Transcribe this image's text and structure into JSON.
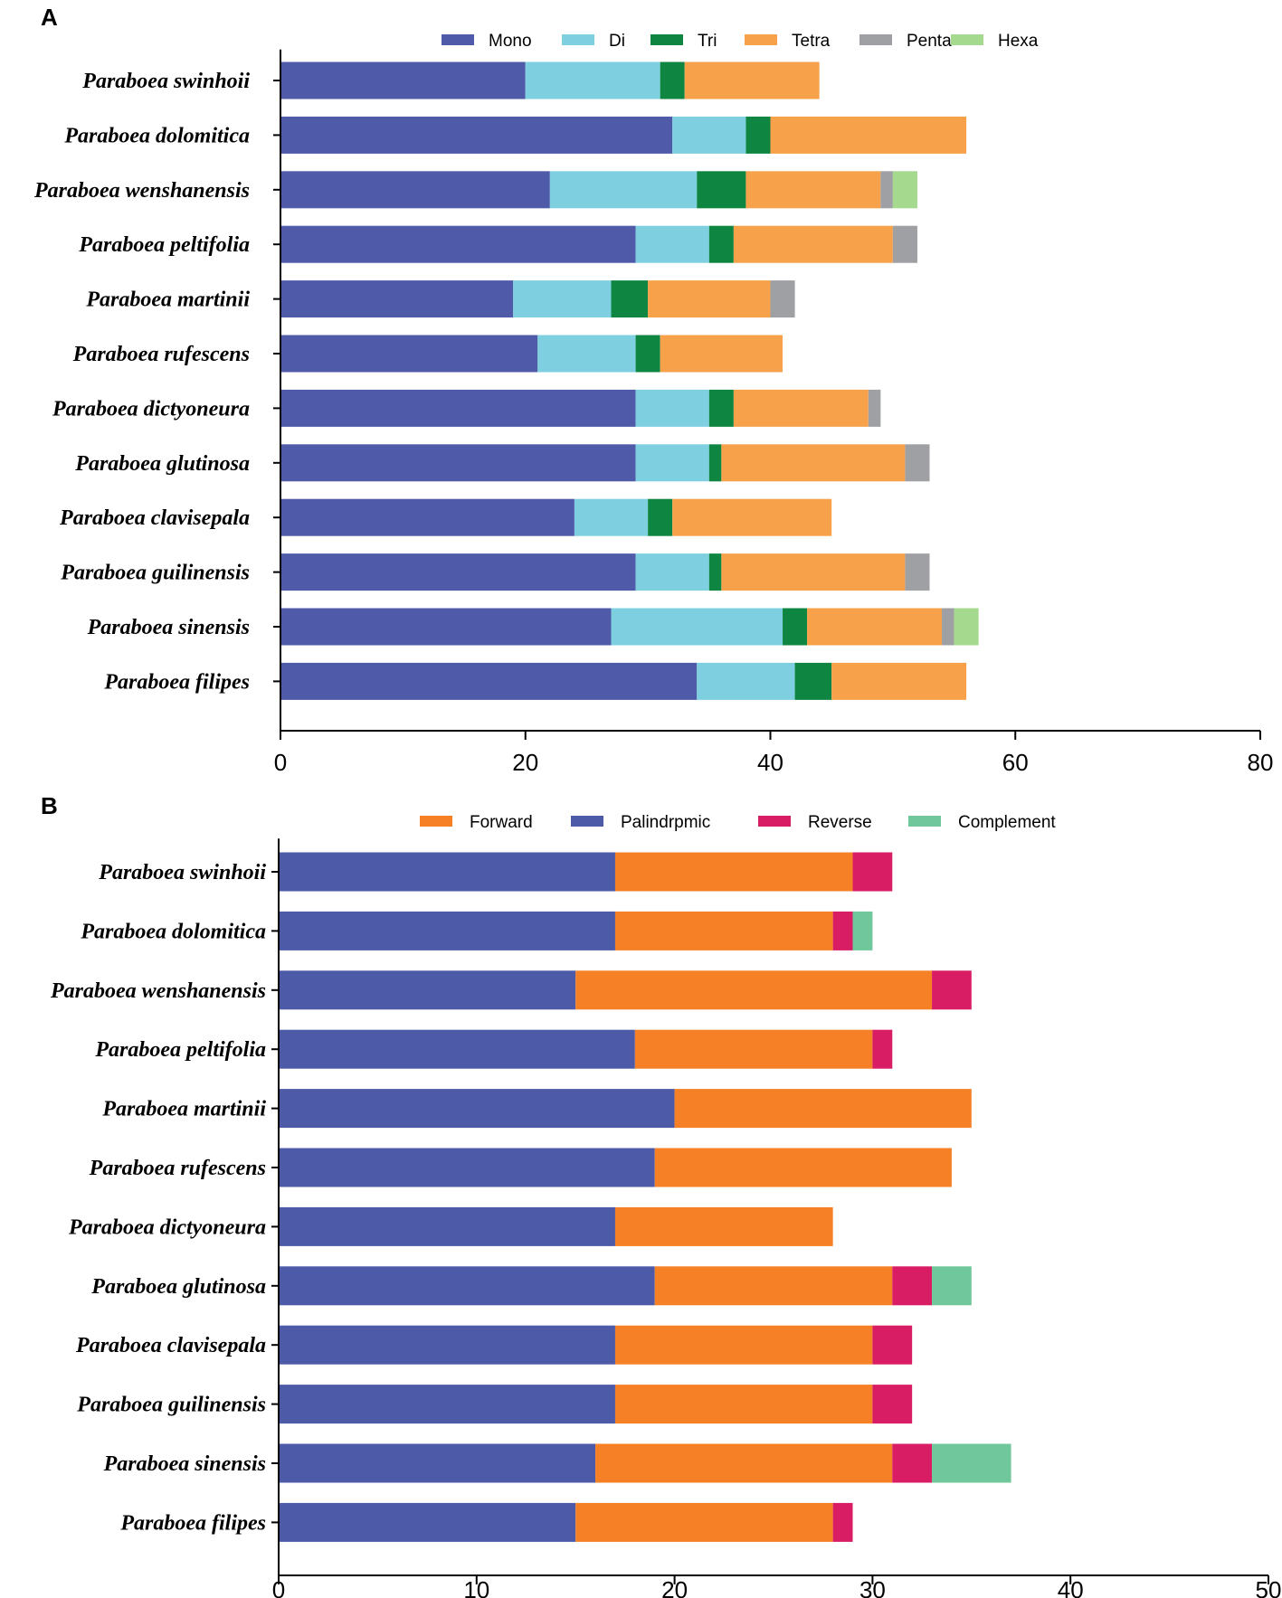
{
  "chart_data": [
    {
      "panel": "A",
      "type": "bar",
      "orientation": "horizontal",
      "stacked": true,
      "categories": [
        "Paraboea swinhoii",
        "Paraboea dolomitica",
        "Paraboea wenshanensis",
        "Paraboea peltifolia",
        "Paraboea martinii",
        "Paraboea rufescens",
        "Paraboea dictyoneura",
        "Paraboea glutinosa",
        "Paraboea clavisepala",
        "Paraboea guilinensis",
        "Paraboea sinensis",
        "Paraboea filipes"
      ],
      "series": [
        {
          "name": "Mono",
          "color": "#4f5aa8",
          "values": [
            20,
            32,
            22,
            29,
            19,
            21,
            29,
            29,
            24,
            29,
            27,
            34
          ]
        },
        {
          "name": "Di",
          "color": "#7ed0e0",
          "values": [
            11,
            6,
            12,
            6,
            8,
            8,
            6,
            6,
            6,
            6,
            14,
            8
          ]
        },
        {
          "name": "Tri",
          "color": "#0f8542",
          "values": [
            2,
            2,
            4,
            2,
            3,
            2,
            2,
            1,
            2,
            1,
            2,
            3
          ]
        },
        {
          "name": "Tetra",
          "color": "#f7a24b",
          "values": [
            11,
            16,
            11,
            13,
            10,
            10,
            11,
            15,
            13,
            15,
            11,
            11
          ]
        },
        {
          "name": "Penta",
          "color": "#9fa0a3",
          "values": [
            0,
            0,
            1,
            2,
            2,
            0,
            1,
            2,
            0,
            2,
            1,
            0
          ]
        },
        {
          "name": "Hexa",
          "color": "#a5d98e",
          "values": [
            0,
            0,
            2,
            0,
            0,
            0,
            0,
            0,
            0,
            0,
            2,
            0
          ]
        }
      ],
      "xlim": [
        0,
        80
      ],
      "xticks": [
        "0",
        "20",
        "40",
        "60",
        "80"
      ],
      "legend": "top"
    },
    {
      "panel": "B",
      "type": "bar",
      "orientation": "horizontal",
      "stacked": true,
      "categories": [
        "Paraboea swinhoii",
        "Paraboea dolomitica",
        "Paraboea wenshanensis",
        "Paraboea peltifolia",
        "Paraboea martinii",
        "Paraboea rufescens",
        "Paraboea dictyoneura",
        "Paraboea glutinosa",
        "Paraboea clavisepala",
        "Paraboea guilinensis",
        "Paraboea sinensis",
        "Paraboea filipes"
      ],
      "legend_order": [
        "Forward",
        "Palindrpmic",
        "Reverse",
        "Complement"
      ],
      "series": [
        {
          "name": "Palindrpmic",
          "color": "#4d5aa8",
          "values": [
            17,
            17,
            15,
            18,
            20,
            19,
            17,
            19,
            17,
            17,
            16,
            15
          ]
        },
        {
          "name": "Forward",
          "color": "#f58025",
          "values": [
            12,
            11,
            18,
            12,
            15,
            15,
            11,
            12,
            13,
            13,
            15,
            13
          ]
        },
        {
          "name": "Reverse",
          "color": "#d81d65",
          "values": [
            2,
            1,
            2,
            1,
            0,
            0,
            0,
            2,
            2,
            2,
            2,
            1
          ]
        },
        {
          "name": "Complement",
          "color": "#70c79b",
          "values": [
            0,
            1,
            0,
            0,
            0,
            0,
            0,
            2,
            0,
            0,
            4,
            0
          ]
        }
      ],
      "xlim": [
        0,
        50
      ],
      "xticks": [
        "0",
        "10",
        "20",
        "30",
        "40",
        "50"
      ],
      "legend": "top"
    }
  ]
}
